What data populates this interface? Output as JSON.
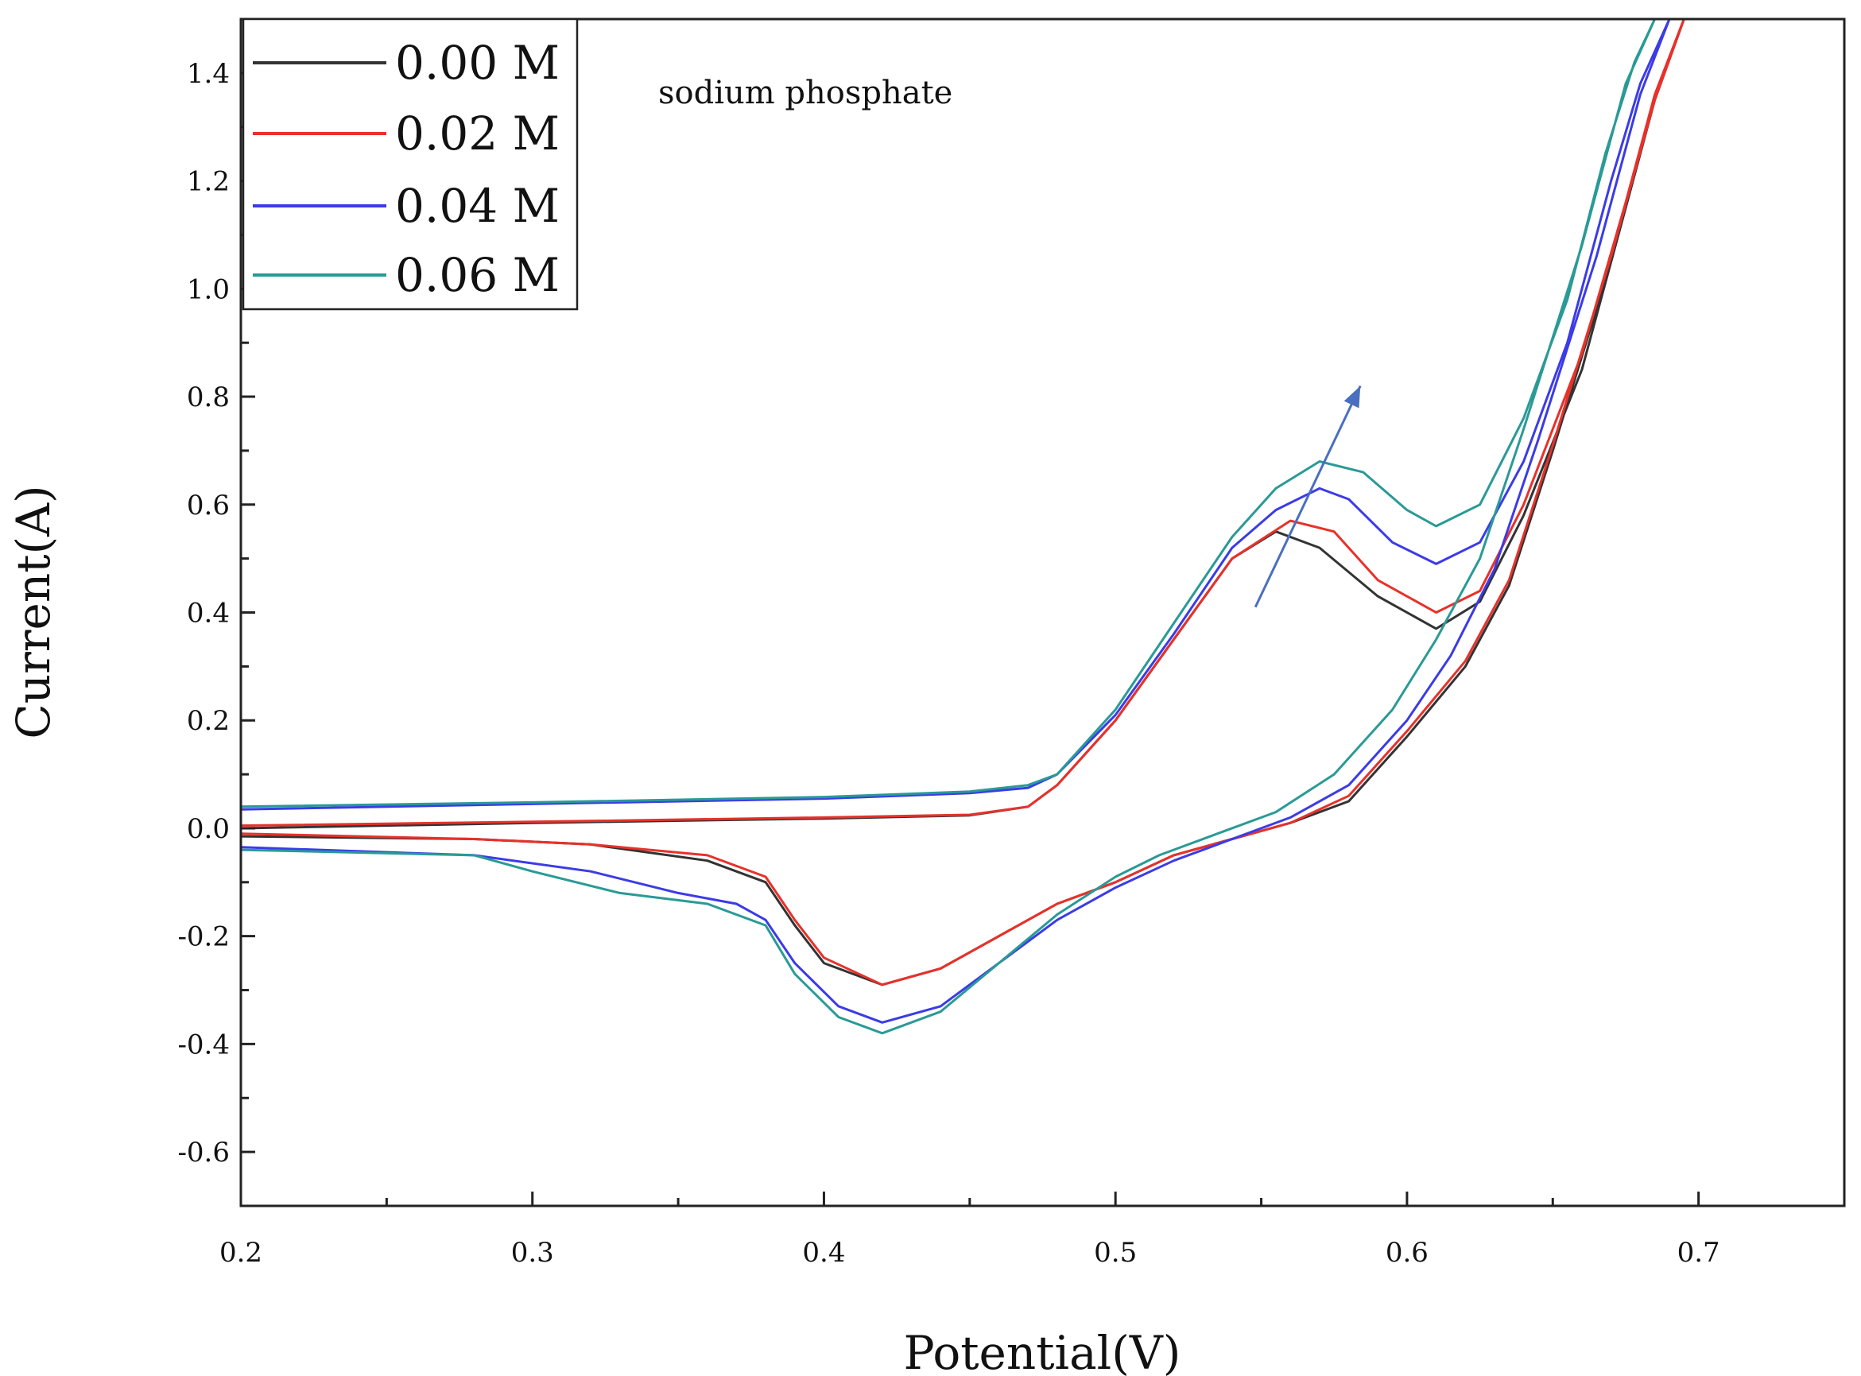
{
  "chart_data": {
    "type": "line",
    "title": "",
    "annotation": "sodium phosphate",
    "xlabel": "Potential(V)",
    "ylabel": "Current(A)",
    "xlim": [
      0.2,
      0.75
    ],
    "ylim": [
      -0.7,
      1.5
    ],
    "x_ticks": [
      0.2,
      0.3,
      0.4,
      0.5,
      0.6,
      0.7
    ],
    "x_tick_labels": [
      "0.2",
      "0.3",
      "0.4",
      "0.5",
      "0.6",
      "0.7"
    ],
    "y_ticks": [
      -0.6,
      -0.4,
      -0.2,
      0.0,
      0.2,
      0.4,
      0.6,
      0.8,
      1.0,
      1.2,
      1.4
    ],
    "y_tick_labels": [
      "-0.6",
      "-0.4",
      "-0.2",
      "0.0",
      "0.2",
      "0.4",
      "0.6",
      "0.8",
      "1.0",
      "1.2",
      "1.4"
    ],
    "grid": false,
    "legend_position": "top-left",
    "trend_arrow": {
      "from": [
        0.548,
        0.41
      ],
      "to": [
        0.584,
        0.82
      ],
      "color": "#4a6fc0"
    },
    "series": [
      {
        "name": "0.00 M",
        "color": "#333333",
        "forward": [
          [
            0.2,
            0.0
          ],
          [
            0.3,
            0.01
          ],
          [
            0.4,
            0.018
          ],
          [
            0.45,
            0.024
          ],
          [
            0.47,
            0.04
          ],
          [
            0.48,
            0.08
          ],
          [
            0.5,
            0.2
          ],
          [
            0.52,
            0.35
          ],
          [
            0.54,
            0.5
          ],
          [
            0.555,
            0.55
          ],
          [
            0.57,
            0.52
          ],
          [
            0.59,
            0.43
          ],
          [
            0.61,
            0.37
          ],
          [
            0.625,
            0.42
          ],
          [
            0.64,
            0.58
          ],
          [
            0.66,
            0.85
          ],
          [
            0.675,
            1.15
          ],
          [
            0.685,
            1.35
          ],
          [
            0.695,
            1.5
          ]
        ],
        "reverse": [
          [
            0.695,
            1.5
          ],
          [
            0.685,
            1.35
          ],
          [
            0.67,
            1.05
          ],
          [
            0.65,
            0.7
          ],
          [
            0.635,
            0.45
          ],
          [
            0.62,
            0.3
          ],
          [
            0.6,
            0.17
          ],
          [
            0.58,
            0.05
          ],
          [
            0.56,
            0.01
          ],
          [
            0.54,
            -0.02
          ],
          [
            0.52,
            -0.05
          ],
          [
            0.5,
            -0.1
          ],
          [
            0.48,
            -0.14
          ],
          [
            0.46,
            -0.2
          ],
          [
            0.44,
            -0.26
          ],
          [
            0.42,
            -0.29
          ],
          [
            0.4,
            -0.25
          ],
          [
            0.39,
            -0.18
          ],
          [
            0.38,
            -0.1
          ],
          [
            0.36,
            -0.06
          ],
          [
            0.32,
            -0.03
          ],
          [
            0.28,
            -0.02
          ],
          [
            0.2,
            -0.015
          ]
        ]
      },
      {
        "name": "0.02 M",
        "color": "#e8312a",
        "forward": [
          [
            0.2,
            0.005
          ],
          [
            0.3,
            0.012
          ],
          [
            0.4,
            0.02
          ],
          [
            0.45,
            0.025
          ],
          [
            0.47,
            0.04
          ],
          [
            0.48,
            0.08
          ],
          [
            0.5,
            0.2
          ],
          [
            0.52,
            0.35
          ],
          [
            0.54,
            0.5
          ],
          [
            0.56,
            0.57
          ],
          [
            0.575,
            0.55
          ],
          [
            0.59,
            0.46
          ],
          [
            0.61,
            0.4
          ],
          [
            0.625,
            0.44
          ],
          [
            0.64,
            0.6
          ],
          [
            0.66,
            0.88
          ],
          [
            0.675,
            1.16
          ],
          [
            0.685,
            1.36
          ],
          [
            0.695,
            1.5
          ]
        ],
        "reverse": [
          [
            0.695,
            1.5
          ],
          [
            0.685,
            1.35
          ],
          [
            0.67,
            1.06
          ],
          [
            0.65,
            0.71
          ],
          [
            0.635,
            0.46
          ],
          [
            0.62,
            0.31
          ],
          [
            0.6,
            0.18
          ],
          [
            0.58,
            0.06
          ],
          [
            0.56,
            0.01
          ],
          [
            0.54,
            -0.02
          ],
          [
            0.52,
            -0.05
          ],
          [
            0.5,
            -0.1
          ],
          [
            0.48,
            -0.14
          ],
          [
            0.46,
            -0.2
          ],
          [
            0.44,
            -0.26
          ],
          [
            0.42,
            -0.29
          ],
          [
            0.4,
            -0.24
          ],
          [
            0.39,
            -0.17
          ],
          [
            0.38,
            -0.09
          ],
          [
            0.36,
            -0.05
          ],
          [
            0.32,
            -0.03
          ],
          [
            0.28,
            -0.02
          ],
          [
            0.2,
            -0.01
          ]
        ]
      },
      {
        "name": "0.04 M",
        "color": "#3b3be8",
        "forward": [
          [
            0.2,
            0.035
          ],
          [
            0.3,
            0.045
          ],
          [
            0.4,
            0.055
          ],
          [
            0.45,
            0.065
          ],
          [
            0.47,
            0.075
          ],
          [
            0.48,
            0.1
          ],
          [
            0.5,
            0.21
          ],
          [
            0.52,
            0.36
          ],
          [
            0.54,
            0.52
          ],
          [
            0.555,
            0.59
          ],
          [
            0.57,
            0.63
          ],
          [
            0.58,
            0.61
          ],
          [
            0.595,
            0.53
          ],
          [
            0.61,
            0.49
          ],
          [
            0.625,
            0.53
          ],
          [
            0.64,
            0.68
          ],
          [
            0.655,
            0.9
          ],
          [
            0.67,
            1.2
          ],
          [
            0.68,
            1.38
          ],
          [
            0.69,
            1.5
          ]
        ],
        "reverse": [
          [
            0.69,
            1.5
          ],
          [
            0.68,
            1.36
          ],
          [
            0.665,
            1.06
          ],
          [
            0.645,
            0.72
          ],
          [
            0.63,
            0.48
          ],
          [
            0.615,
            0.32
          ],
          [
            0.6,
            0.2
          ],
          [
            0.58,
            0.08
          ],
          [
            0.56,
            0.02
          ],
          [
            0.54,
            -0.02
          ],
          [
            0.52,
            -0.06
          ],
          [
            0.5,
            -0.11
          ],
          [
            0.48,
            -0.17
          ],
          [
            0.46,
            -0.25
          ],
          [
            0.44,
            -0.33
          ],
          [
            0.42,
            -0.36
          ],
          [
            0.405,
            -0.33
          ],
          [
            0.39,
            -0.25
          ],
          [
            0.38,
            -0.17
          ],
          [
            0.37,
            -0.14
          ],
          [
            0.35,
            -0.12
          ],
          [
            0.32,
            -0.08
          ],
          [
            0.28,
            -0.05
          ],
          [
            0.2,
            -0.035
          ]
        ]
      },
      {
        "name": "0.06 M",
        "color": "#2a9a96",
        "forward": [
          [
            0.2,
            0.04
          ],
          [
            0.3,
            0.048
          ],
          [
            0.4,
            0.058
          ],
          [
            0.45,
            0.068
          ],
          [
            0.47,
            0.08
          ],
          [
            0.48,
            0.1
          ],
          [
            0.5,
            0.22
          ],
          [
            0.52,
            0.38
          ],
          [
            0.54,
            0.54
          ],
          [
            0.555,
            0.63
          ],
          [
            0.57,
            0.68
          ],
          [
            0.585,
            0.66
          ],
          [
            0.6,
            0.59
          ],
          [
            0.61,
            0.56
          ],
          [
            0.625,
            0.6
          ],
          [
            0.64,
            0.76
          ],
          [
            0.655,
            0.98
          ],
          [
            0.668,
            1.25
          ],
          [
            0.678,
            1.42
          ],
          [
            0.685,
            1.5
          ]
        ],
        "reverse": [
          [
            0.685,
            1.5
          ],
          [
            0.675,
            1.38
          ],
          [
            0.66,
            1.08
          ],
          [
            0.64,
            0.74
          ],
          [
            0.625,
            0.5
          ],
          [
            0.61,
            0.35
          ],
          [
            0.595,
            0.22
          ],
          [
            0.575,
            0.1
          ],
          [
            0.555,
            0.03
          ],
          [
            0.535,
            -0.01
          ],
          [
            0.515,
            -0.05
          ],
          [
            0.5,
            -0.09
          ],
          [
            0.48,
            -0.16
          ],
          [
            0.46,
            -0.25
          ],
          [
            0.44,
            -0.34
          ],
          [
            0.42,
            -0.38
          ],
          [
            0.405,
            -0.35
          ],
          [
            0.39,
            -0.27
          ],
          [
            0.38,
            -0.18
          ],
          [
            0.36,
            -0.14
          ],
          [
            0.33,
            -0.12
          ],
          [
            0.3,
            -0.08
          ],
          [
            0.28,
            -0.05
          ],
          [
            0.2,
            -0.04
          ]
        ]
      }
    ]
  }
}
